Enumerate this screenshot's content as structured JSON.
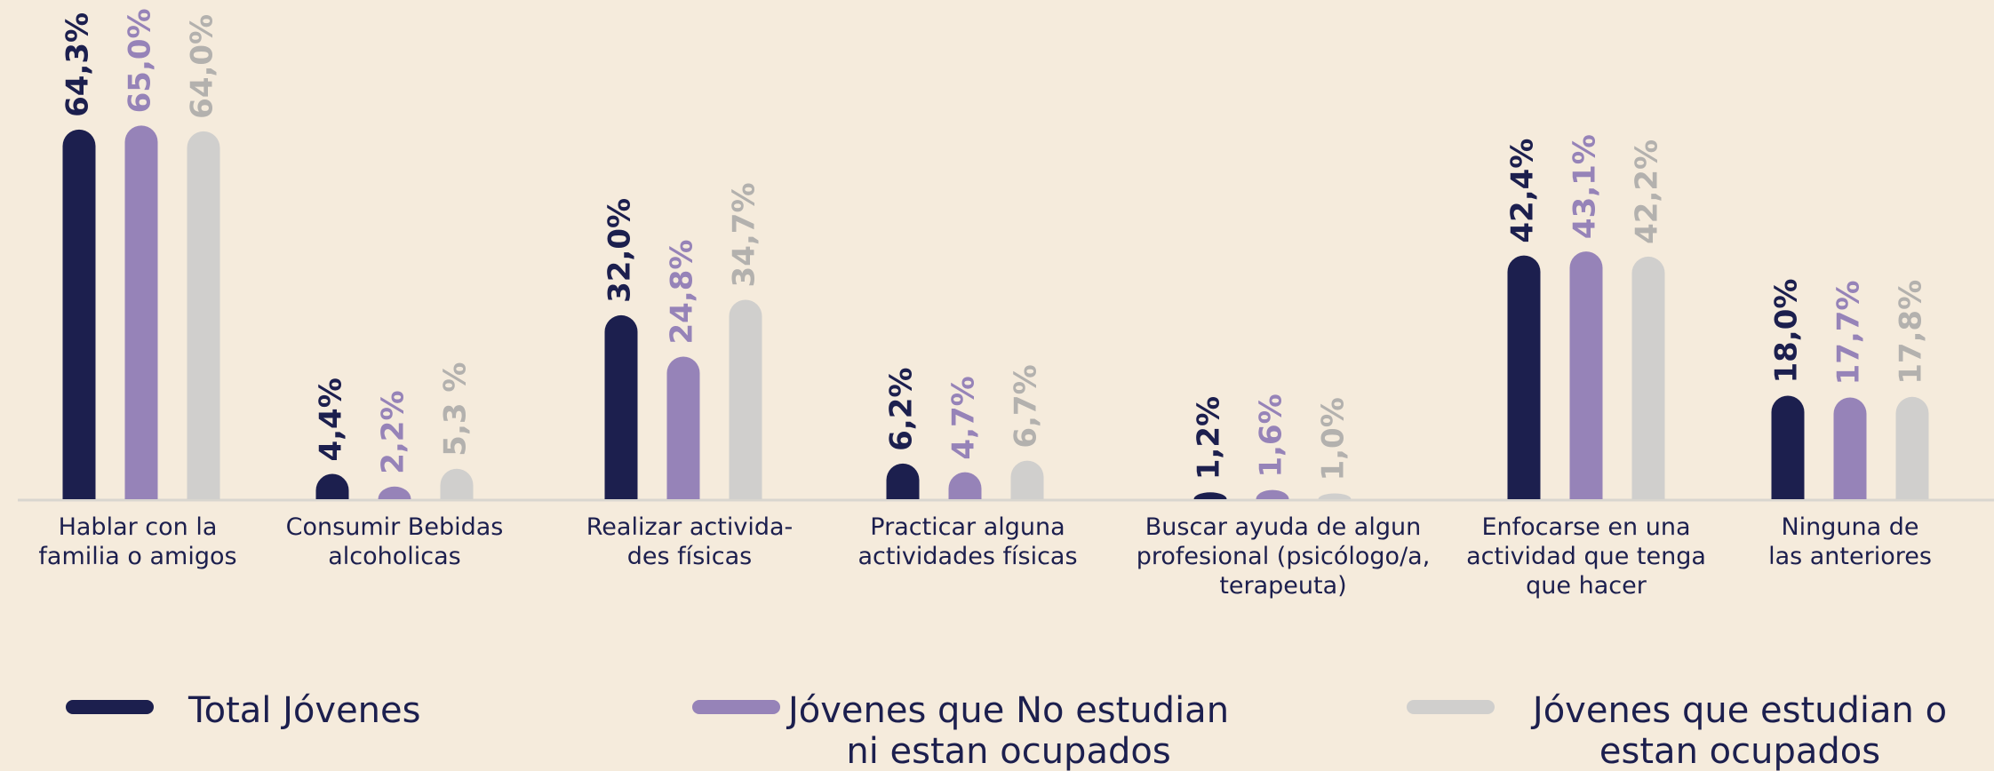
{
  "chart_data": {
    "type": "bar",
    "categories": [
      "Hablar con la\nfamilia o amigos",
      "Consumir Bebidas\nalcoholicas",
      "Realizar activida-\ndes físicas",
      "Practicar alguna\nactividades físicas",
      "Buscar ayuda de algun\nprofesional (psicólogo/a,\nterapeuta)",
      "Enfocarse en una\nactividad que tenga\nque hacer",
      "Ninguna de\nlas anteriores"
    ],
    "series": [
      {
        "name": "Total Jóvenes",
        "color": "#1c1f4e",
        "values": [
          64.3,
          4.4,
          32.0,
          6.2,
          1.2,
          42.4,
          18.0
        ],
        "value_labels": [
          "64,3%",
          "4,4%",
          "32,0%",
          "6,2%",
          "1,2%",
          "42,4%",
          "18,0%"
        ]
      },
      {
        "name": "Jóvenes que No estudian\nni estan ocupados",
        "color": "#9683b8",
        "values": [
          65.0,
          2.2,
          24.8,
          4.7,
          1.6,
          43.1,
          17.7
        ],
        "value_labels": [
          "65,0%",
          "2,2%",
          "24,8%",
          "4,7%",
          "1,6%",
          "43,1%",
          "17,7%"
        ]
      },
      {
        "name": "Jóvenes que estudian o\nestan ocupados",
        "color": "#d0cfcd",
        "values": [
          64.0,
          5.3,
          34.7,
          6.7,
          1.0,
          42.2,
          17.8
        ],
        "value_labels": [
          "64,0%",
          "5,3 %",
          "34,7%",
          "6,7%",
          "1,0%",
          "42,2%",
          "17,8%"
        ]
      }
    ],
    "ylim": [
      0,
      70
    ]
  }
}
